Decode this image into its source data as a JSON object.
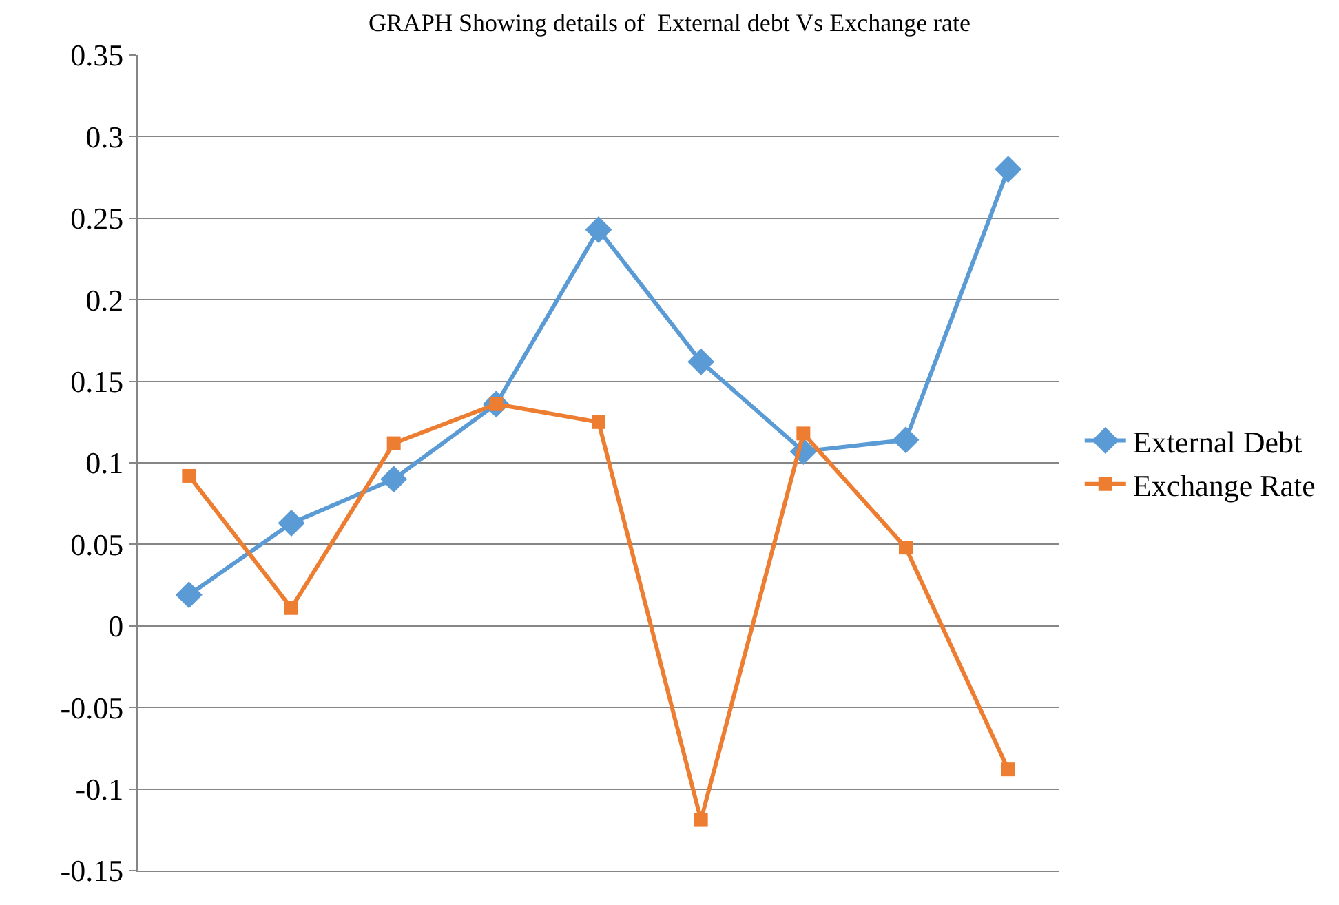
{
  "chart_data": {
    "type": "line",
    "title": "GRAPH Showing details of  External debt Vs Exchange rate",
    "categories": [
      null,
      null,
      null,
      null,
      null,
      null,
      null,
      null,
      null
    ],
    "series": [
      {
        "name": "External Debt",
        "color": "#5b9bd5",
        "marker": "diamond",
        "values": [
          0.019,
          0.063,
          0.09,
          0.136,
          0.243,
          0.162,
          0.107,
          0.114,
          0.28
        ]
      },
      {
        "name": "Exchange Rate",
        "color": "#ed7d31",
        "marker": "square",
        "values": [
          0.092,
          0.011,
          0.112,
          0.136,
          0.125,
          -0.119,
          0.118,
          0.048,
          -0.088
        ]
      }
    ],
    "ylim": [
      -0.15,
      0.35
    ],
    "yticks": [
      -0.15,
      -0.1,
      -0.05,
      0,
      0.05,
      0.1,
      0.15,
      0.2,
      0.25,
      0.3,
      0.35
    ],
    "grid": "y",
    "legend": "right",
    "line_style": "solid"
  }
}
